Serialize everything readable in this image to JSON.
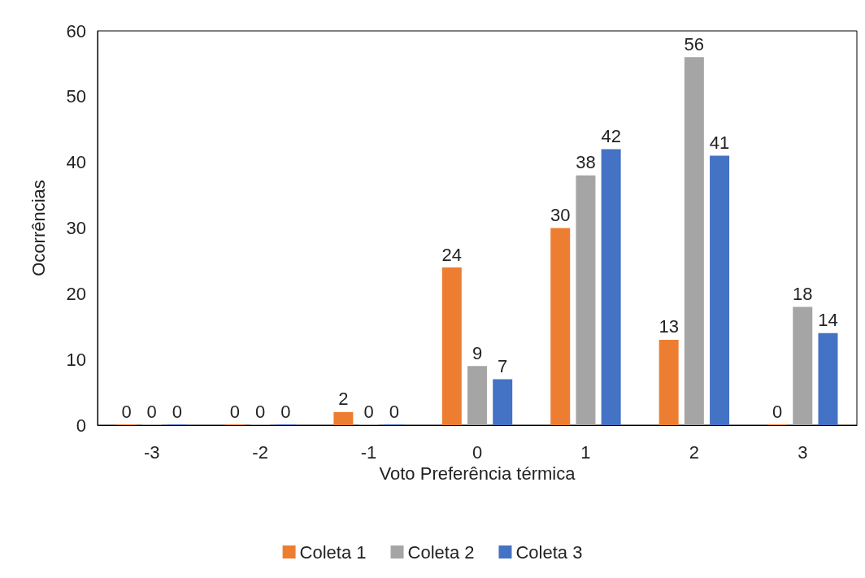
{
  "chart_data": {
    "type": "bar",
    "xlabel": "Voto Preferência térmica",
    "ylabel": "Ocorrências",
    "categories": [
      "-3",
      "-2",
      "-1",
      "0",
      "1",
      "2",
      "3"
    ],
    "series": [
      {
        "name": "Coleta 1",
        "color": "#ed7d31",
        "values": [
          0,
          0,
          2,
          24,
          30,
          13,
          0
        ]
      },
      {
        "name": "Coleta 2",
        "color": "#a5a5a5",
        "values": [
          0,
          0,
          0,
          9,
          38,
          56,
          18
        ]
      },
      {
        "name": "Coleta 3",
        "color": "#4472c4",
        "values": [
          0,
          0,
          0,
          7,
          42,
          41,
          14
        ]
      }
    ],
    "ylim": [
      0,
      60
    ],
    "yticks": [
      0,
      10,
      20,
      30,
      40,
      50,
      60
    ],
    "grid": false,
    "legend": "bottom",
    "data_labels": true
  }
}
